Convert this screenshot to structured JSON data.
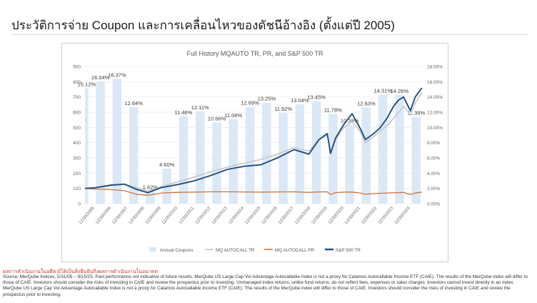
{
  "page": {
    "title": "ประวัติการจ่าย Coupon และการเคลื่อนไหวของดัชนีอ้างอิง (ตั้งแต่ปี 2005)",
    "disclaimer_red": "ผลการดำเนินงานในอดีต มิได้เป็นสิ่งยืนยันถึงผลการดำเนินงานในอนาคต",
    "footnote": "Source: MerQube Indices, 5/31/05 – 9/15/25. Past performance not indicative of future results. MerQube US Large Cap Vol Advantage Autocallable Index is not a proxy for Calamos Autocallable Income ETF (CAIE). The results of the MerQube index will differ to those of CAIE. Investors should consider the risks of investing in CAIE and review the prospectus prior to investing. Unmanaged index returns, unlike fund returns, do not reflect fees, expenses or sales charges. Investors cannot invest directly in an index. MerQube US Large Cap Vol Advantage Autocallable Index is not a proxy for Calamos Autocallable Income ETF (CAIE). The results of the MerQube index will differ to those of CAIE. Investors should consider the risks of investing in CAIE and review the prospectus prior to investing."
  },
  "colors": {
    "coupon_bar": "#dbe9f6",
    "mq_tr": "#c5c7ca",
    "mq_pr": "#c8763e",
    "sp500": "#234d80",
    "grid": "#e6e6e6",
    "axis_text": "#666666"
  },
  "chart_data": {
    "type": "bar+line",
    "title": "Full History MQAUTO TR, PR, and S&P 500 TR",
    "ylim_left": [
      0,
      900
    ],
    "yticks_left": [
      "0",
      "100",
      "200",
      "300",
      "400",
      "500",
      "600",
      "700",
      "800",
      "900"
    ],
    "ylim_right": [
      0,
      18
    ],
    "yticks_right": [
      "0.00%",
      "2.00%",
      "4.00%",
      "6.00%",
      "8.00%",
      "10.00%",
      "12.00%",
      "14.00%",
      "16.00%",
      "18.00%"
    ],
    "xticks": [
      "12/30/2005",
      "12/30/2006",
      "12/30/2007",
      "12/30/2008",
      "12/30/2009",
      "12/30/2010",
      "12/30/2011",
      "12/30/2012",
      "12/30/2013",
      "12/30/2014",
      "12/30/2015",
      "12/30/2016",
      "12/30/2017",
      "12/30/2018",
      "12/30/2019",
      "12/30/2020",
      "12/30/2021",
      "12/30/2022",
      "12/30/2023",
      "12/30/2024"
    ],
    "coupons": {
      "name": "Annual Coupons",
      "years": [
        2005,
        2006,
        2007,
        2008,
        2009,
        2010,
        2011,
        2012,
        2013,
        2014,
        2015,
        2016,
        2017,
        2018,
        2019,
        2020,
        2021,
        2022,
        2023,
        2024,
        2025
      ],
      "values": [
        15.12,
        16.04,
        16.37,
        12.64,
        1.62,
        4.6,
        11.46,
        12.11,
        10.66,
        11.06,
        12.69,
        13.25,
        11.92,
        13.04,
        13.45,
        11.78,
        10.38,
        12.63,
        14.31,
        14.26,
        11.39
      ],
      "labels": [
        "15.12%",
        "16.04%",
        "16.37%",
        "12.64%",
        "1.62%",
        "4.60%",
        "11.46%",
        "12.11%",
        "10.66%",
        "11.06%",
        "12.69%",
        "13.25%",
        "11.92%",
        "13.04%",
        "13.45%",
        "11.78%",
        "10.38%",
        "12.63%",
        "14.31%",
        "14.26%",
        "11.39%"
      ]
    },
    "series": [
      {
        "name": "MQ AUTOCALL TR",
        "x": [
          2005.42,
          2006.0,
          2007.0,
          2007.8,
          2008.5,
          2009.2,
          2010.0,
          2011.0,
          2012.0,
          2013.0,
          2014.0,
          2015.0,
          2016.0,
          2017.0,
          2018.0,
          2018.9,
          2019.5,
          2020.0,
          2020.2,
          2020.5,
          2021.0,
          2021.5,
          2022.0,
          2022.3,
          2022.8,
          2023.2,
          2023.6,
          2024.0,
          2024.3,
          2024.6,
          2025.0,
          2025.3,
          2025.7
        ],
        "values": [
          100,
          104,
          118,
          128,
          106,
          82,
          112,
          142,
          175,
          210,
          240,
          265,
          290,
          325,
          368,
          345,
          420,
          450,
          340,
          420,
          500,
          540,
          470,
          400,
          440,
          480,
          510,
          560,
          600,
          640,
          580,
          660,
          730
        ]
      },
      {
        "name": "MQ AUTOCALL PR",
        "x": [
          2005.42,
          2006.0,
          2007.0,
          2007.8,
          2008.5,
          2009.2,
          2010.0,
          2011.0,
          2012.0,
          2013.0,
          2014.0,
          2015.0,
          2016.0,
          2017.0,
          2018.0,
          2018.9,
          2019.5,
          2020.0,
          2020.2,
          2020.5,
          2021.0,
          2021.5,
          2022.0,
          2022.3,
          2022.8,
          2023.2,
          2023.6,
          2024.0,
          2024.3,
          2024.6,
          2025.0,
          2025.3,
          2025.7
        ],
        "values": [
          100,
          96,
          92,
          85,
          62,
          55,
          70,
          74,
          76,
          78,
          78,
          77,
          76,
          77,
          78,
          74,
          77,
          78,
          60,
          72,
          76,
          76,
          70,
          62,
          66,
          68,
          70,
          72,
          72,
          74,
          60,
          70,
          76
        ]
      },
      {
        "name": "S&P 500 TR",
        "x": [
          2005.42,
          2006.0,
          2007.0,
          2007.8,
          2008.5,
          2009.2,
          2010.0,
          2011.0,
          2012.0,
          2013.0,
          2014.0,
          2015.0,
          2016.0,
          2017.0,
          2018.0,
          2018.9,
          2019.5,
          2020.0,
          2020.2,
          2020.5,
          2021.0,
          2021.5,
          2022.0,
          2022.3,
          2022.8,
          2023.2,
          2023.6,
          2024.0,
          2024.3,
          2024.6,
          2025.0,
          2025.3,
          2025.7
        ],
        "values": [
          100,
          104,
          122,
          128,
          95,
          72,
          105,
          125,
          150,
          185,
          225,
          245,
          255,
          300,
          355,
          325,
          420,
          460,
          330,
          430,
          520,
          590,
          490,
          420,
          460,
          500,
          560,
          640,
          680,
          700,
          610,
          700,
          760
        ]
      }
    ]
  }
}
